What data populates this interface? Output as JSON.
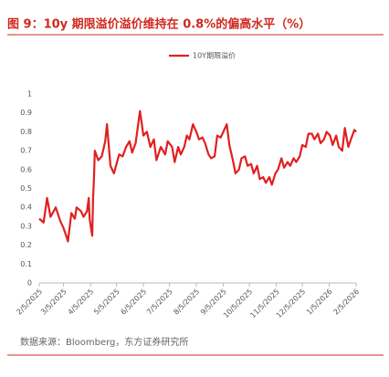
{
  "chart_data": {
    "type": "line",
    "title": "图 9：10y 期限溢价溢价维持在 0.8%的偏高水平（%）",
    "source": "数据来源：Bloomberg，东方证券研究所",
    "x": [
      "2/5/2025",
      "2/10/2025",
      "2/14/2025",
      "2/18/2025",
      "2/24/2025",
      "3/1/2025",
      "3/5/2025",
      "3/8/2025",
      "3/10/2025",
      "3/14/2025",
      "3/18/2025",
      "3/20/2025",
      "3/25/2025",
      "3/28/2025",
      "4/1/2025",
      "4/3/2025",
      "4/4/2025",
      "4/7/2025",
      "4/8/2025",
      "4/9/2025",
      "4/10/2025",
      "4/14/2025",
      "4/18/2025",
      "4/22/2025",
      "4/24/2025",
      "4/28/2025",
      "5/2/2025",
      "5/8/2025",
      "5/12/2025",
      "5/16/2025",
      "5/20/2025",
      "5/23/2025",
      "5/27/2025",
      "6/1/2025",
      "6/5/2025",
      "6/9/2025",
      "6/13/2025",
      "6/17/2025",
      "6/20/2025",
      "6/25/2025",
      "6/30/2025",
      "7/3/2025",
      "7/8/2025",
      "7/11/2025",
      "7/15/2025",
      "7/18/2025",
      "7/22/2025",
      "7/25/2025",
      "7/28/2025",
      "8/1/2025",
      "8/5/2025",
      "8/8/2025",
      "8/12/2025",
      "8/15/2025",
      "8/19/2025",
      "8/22/2025",
      "8/26/2025",
      "8/29/2025",
      "9/2/2025",
      "9/5/2025",
      "9/9/2025",
      "9/12/2025",
      "9/16/2025",
      "9/19/2025",
      "9/23/2025",
      "9/26/2025",
      "9/30/2025",
      "10/3/2025",
      "10/7/2025",
      "10/10/2025",
      "10/14/2025",
      "10/17/2025",
      "10/21/2025",
      "10/24/2025",
      "10/28/2025",
      "10/31/2025",
      "11/4/2025",
      "11/7/2025",
      "11/11/2025",
      "11/14/2025",
      "11/18/2025",
      "11/21/2025",
      "11/25/2025",
      "11/28/2025",
      "12/2/2025",
      "12/5/2025",
      "12/9/2025",
      "12/12/2025",
      "12/16/2025",
      "12/19/2025",
      "12/23/2025",
      "12/26/2025",
      "12/30/2025",
      "1/2/2026",
      "1/6/2026",
      "1/9/2026",
      "1/13/2026",
      "1/16/2026",
      "1/20/2026",
      "1/23/2026",
      "1/27/2026",
      "1/30/2026",
      "2/3/2026",
      "2/5/2026"
    ],
    "series": [
      {
        "name": "10Y期限溢价",
        "color": "#e02020",
        "values": [
          0.34,
          0.32,
          0.45,
          0.35,
          0.4,
          0.33,
          0.29,
          0.25,
          0.22,
          0.37,
          0.34,
          0.4,
          0.38,
          0.35,
          0.38,
          0.45,
          0.34,
          0.25,
          0.45,
          0.55,
          0.7,
          0.65,
          0.67,
          0.75,
          0.84,
          0.62,
          0.58,
          0.68,
          0.67,
          0.72,
          0.75,
          0.69,
          0.74,
          0.91,
          0.78,
          0.8,
          0.72,
          0.76,
          0.65,
          0.72,
          0.68,
          0.75,
          0.72,
          0.64,
          0.72,
          0.68,
          0.72,
          0.78,
          0.76,
          0.84,
          0.8,
          0.76,
          0.77,
          0.74,
          0.68,
          0.66,
          0.67,
          0.78,
          0.77,
          0.8,
          0.84,
          0.73,
          0.65,
          0.58,
          0.6,
          0.66,
          0.67,
          0.62,
          0.63,
          0.58,
          0.62,
          0.55,
          0.56,
          0.53,
          0.56,
          0.52,
          0.58,
          0.6,
          0.66,
          0.61,
          0.64,
          0.62,
          0.66,
          0.64,
          0.67,
          0.73,
          0.72,
          0.79,
          0.79,
          0.76,
          0.79,
          0.74,
          0.76,
          0.8,
          0.78,
          0.73,
          0.78,
          0.72,
          0.7,
          0.82,
          0.72,
          0.76,
          0.81,
          0.8
        ]
      }
    ],
    "xlim": [
      "2/5/2025",
      "2/5/2026"
    ],
    "xticks": [
      "2/5/2025",
      "3/5/2025",
      "4/5/2025",
      "5/5/2025",
      "6/5/2025",
      "7/5/2025",
      "8/5/2025",
      "9/5/2025",
      "10/5/2025",
      "11/5/2025",
      "12/5/2025",
      "1/5/2026",
      "2/5/2026"
    ],
    "ylim": [
      0,
      1
    ],
    "yticks": [
      0,
      0.1,
      0.2,
      0.3,
      0.4,
      0.5,
      0.6,
      0.7,
      0.8,
      0.9,
      1
    ],
    "grid": false
  }
}
